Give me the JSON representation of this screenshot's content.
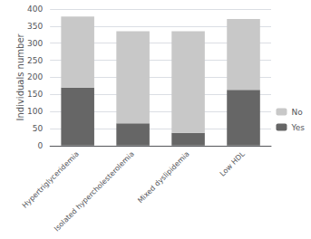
{
  "chart_data": {
    "type": "bar",
    "stacked": true,
    "categories": [
      "Hypertriglyceridemia",
      "Isolated hypercholesterolemia",
      "Mixed dyslipidemia",
      "Low HDL"
    ],
    "series": [
      {
        "name": "Yes",
        "color": "#666666",
        "values": [
          170,
          65,
          37,
          163
        ]
      },
      {
        "name": "No",
        "color": "#c8c8c8",
        "values": [
          208,
          270,
          298,
          208
        ]
      }
    ],
    "ylabel": "Individuals number",
    "ylim": [
      0,
      400
    ],
    "yticks": [
      0,
      50,
      100,
      150,
      200,
      250,
      300,
      350,
      400
    ],
    "grid": true,
    "legend": "right"
  }
}
